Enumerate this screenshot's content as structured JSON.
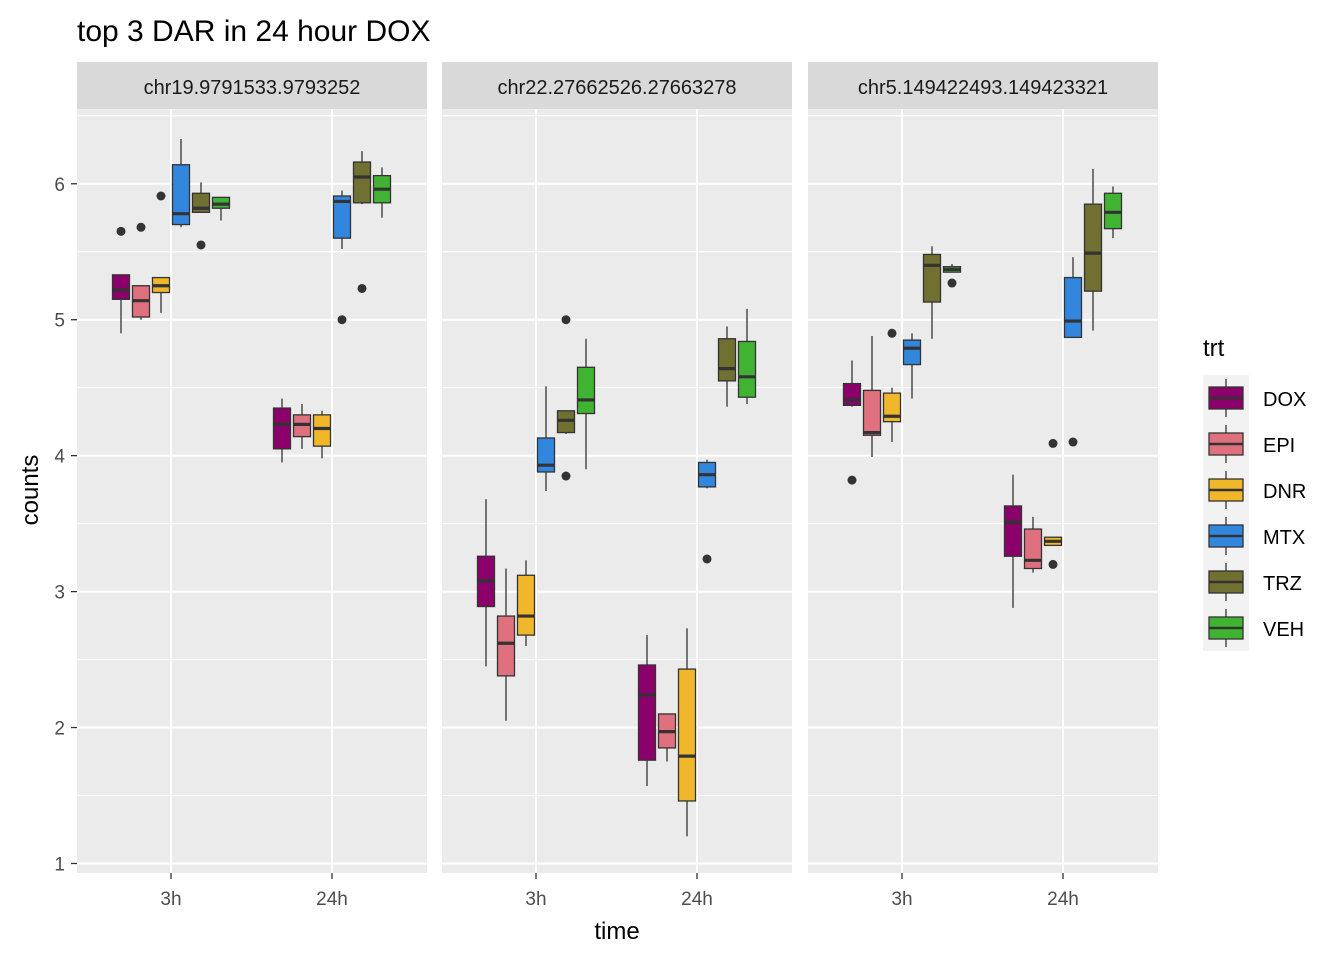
{
  "chart_data": {
    "type": "boxplot",
    "title": "top 3 DAR in 24 hour DOX",
    "xlabel": "time",
    "ylabel": "counts",
    "ylim": [
      0.93,
      6.55
    ],
    "yticks": [
      1,
      2,
      3,
      4,
      5,
      6
    ],
    "categories": [
      "3h",
      "24h"
    ],
    "legend": {
      "title": "trt",
      "position": "right",
      "items": [
        {
          "name": "DOX",
          "color": "#8B006B"
        },
        {
          "name": "EPI",
          "color": "#DF707E"
        },
        {
          "name": "DNR",
          "color": "#F1B72B"
        },
        {
          "name": "MTX",
          "color": "#3386DD"
        },
        {
          "name": "TRZ",
          "color": "#707031"
        },
        {
          "name": "VEH",
          "color": "#41B333"
        }
      ]
    },
    "panels": [
      {
        "label": "chr19.9791533.9793252",
        "groups": {
          "3h": [
            {
              "trt": "DOX",
              "min": 4.9,
              "q1": 5.15,
              "median": 5.22,
              "q3": 5.33,
              "max": 5.33,
              "outliers": [
                5.65
              ]
            },
            {
              "trt": "EPI",
              "min": 5.0,
              "q1": 5.02,
              "median": 5.14,
              "q3": 5.25,
              "max": 5.25,
              "outliers": [
                5.68
              ]
            },
            {
              "trt": "DNR",
              "min": 5.05,
              "q1": 5.2,
              "median": 5.25,
              "q3": 5.31,
              "max": 5.31,
              "outliers": [
                5.91
              ]
            },
            {
              "trt": "MTX",
              "min": 5.68,
              "q1": 5.7,
              "median": 5.78,
              "q3": 6.14,
              "max": 6.33,
              "outliers": []
            },
            {
              "trt": "TRZ",
              "min": 5.79,
              "q1": 5.79,
              "median": 5.82,
              "q3": 5.93,
              "max": 6.01,
              "outliers": [
                5.55
              ]
            },
            {
              "trt": "VEH",
              "min": 5.73,
              "q1": 5.82,
              "median": 5.85,
              "q3": 5.9,
              "max": 5.9,
              "outliers": []
            }
          ],
          "24h": [
            {
              "trt": "DOX",
              "min": 3.95,
              "q1": 4.05,
              "median": 4.23,
              "q3": 4.35,
              "max": 4.42,
              "outliers": []
            },
            {
              "trt": "EPI",
              "min": 4.05,
              "q1": 4.14,
              "median": 4.23,
              "q3": 4.3,
              "max": 4.38,
              "outliers": []
            },
            {
              "trt": "DNR",
              "min": 3.98,
              "q1": 4.07,
              "median": 4.2,
              "q3": 4.3,
              "max": 4.33,
              "outliers": []
            },
            {
              "trt": "MTX",
              "min": 5.52,
              "q1": 5.6,
              "median": 5.87,
              "q3": 5.91,
              "max": 5.95,
              "outliers": [
                5.0
              ]
            },
            {
              "trt": "TRZ",
              "min": 5.85,
              "q1": 5.86,
              "median": 6.05,
              "q3": 6.16,
              "max": 6.24,
              "outliers": [
                5.23
              ]
            },
            {
              "trt": "VEH",
              "min": 5.75,
              "q1": 5.86,
              "median": 5.96,
              "q3": 6.06,
              "max": 6.12,
              "outliers": []
            }
          ]
        }
      },
      {
        "label": "chr22.27662526.27663278",
        "groups": {
          "3h": [
            {
              "trt": "DOX",
              "min": 2.45,
              "q1": 2.89,
              "median": 3.08,
              "q3": 3.26,
              "max": 3.68,
              "outliers": []
            },
            {
              "trt": "EPI",
              "min": 2.05,
              "q1": 2.38,
              "median": 2.62,
              "q3": 2.82,
              "max": 3.17,
              "outliers": []
            },
            {
              "trt": "DNR",
              "min": 2.6,
              "q1": 2.68,
              "median": 2.82,
              "q3": 3.12,
              "max": 3.23,
              "outliers": []
            },
            {
              "trt": "MTX",
              "min": 3.74,
              "q1": 3.88,
              "median": 3.93,
              "q3": 4.13,
              "max": 4.51,
              "outliers": []
            },
            {
              "trt": "TRZ",
              "min": 4.16,
              "q1": 4.17,
              "median": 4.26,
              "q3": 4.33,
              "max": 4.33,
              "outliers": [
                5.0,
                3.85
              ]
            },
            {
              "trt": "VEH",
              "min": 3.9,
              "q1": 4.31,
              "median": 4.41,
              "q3": 4.65,
              "max": 4.86,
              "outliers": []
            }
          ],
          "24h": [
            {
              "trt": "DOX",
              "min": 1.57,
              "q1": 1.76,
              "median": 2.24,
              "q3": 2.46,
              "max": 2.68,
              "outliers": []
            },
            {
              "trt": "EPI",
              "min": 1.75,
              "q1": 1.85,
              "median": 1.97,
              "q3": 2.1,
              "max": 2.1,
              "outliers": []
            },
            {
              "trt": "DNR",
              "min": 1.2,
              "q1": 1.46,
              "median": 1.79,
              "q3": 2.43,
              "max": 2.73,
              "outliers": []
            },
            {
              "trt": "MTX",
              "min": 3.76,
              "q1": 3.77,
              "median": 3.86,
              "q3": 3.95,
              "max": 3.97,
              "outliers": [
                3.24
              ]
            },
            {
              "trt": "TRZ",
              "min": 4.36,
              "q1": 4.55,
              "median": 4.64,
              "q3": 4.86,
              "max": 4.95,
              "outliers": []
            },
            {
              "trt": "VEH",
              "min": 4.38,
              "q1": 4.43,
              "median": 4.58,
              "q3": 4.84,
              "max": 5.08,
              "outliers": []
            }
          ]
        }
      },
      {
        "label": "chr5.149422493.149423321",
        "groups": {
          "3h": [
            {
              "trt": "DOX",
              "min": 4.36,
              "q1": 4.37,
              "median": 4.41,
              "q3": 4.53,
              "max": 4.7,
              "outliers": [
                3.82
              ]
            },
            {
              "trt": "EPI",
              "min": 3.99,
              "q1": 4.15,
              "median": 4.17,
              "q3": 4.48,
              "max": 4.88,
              "outliers": []
            },
            {
              "trt": "DNR",
              "min": 4.1,
              "q1": 4.25,
              "median": 4.29,
              "q3": 4.46,
              "max": 4.5,
              "outliers": [
                4.9
              ]
            },
            {
              "trt": "MTX",
              "min": 4.42,
              "q1": 4.67,
              "median": 4.79,
              "q3": 4.85,
              "max": 4.9,
              "outliers": []
            },
            {
              "trt": "TRZ",
              "min": 4.86,
              "q1": 5.13,
              "median": 5.4,
              "q3": 5.48,
              "max": 5.54,
              "outliers": []
            },
            {
              "trt": "VEH",
              "min": 5.35,
              "q1": 5.35,
              "median": 5.37,
              "q3": 5.39,
              "max": 5.41,
              "outliers": [
                5.27
              ]
            }
          ],
          "24h": [
            {
              "trt": "DOX",
              "min": 2.88,
              "q1": 3.26,
              "median": 3.51,
              "q3": 3.63,
              "max": 3.86,
              "outliers": []
            },
            {
              "trt": "EPI",
              "min": 3.14,
              "q1": 3.17,
              "median": 3.23,
              "q3": 3.46,
              "max": 3.55,
              "outliers": []
            },
            {
              "trt": "DNR",
              "min": 3.34,
              "q1": 3.34,
              "median": 3.37,
              "q3": 3.4,
              "max": 3.4,
              "outliers": [
                4.09,
                3.2
              ]
            },
            {
              "trt": "MTX",
              "min": 4.87,
              "q1": 4.87,
              "median": 4.99,
              "q3": 5.31,
              "max": 5.46,
              "outliers": [
                4.1
              ]
            },
            {
              "trt": "TRZ",
              "min": 4.92,
              "q1": 5.21,
              "median": 5.49,
              "q3": 5.85,
              "max": 6.11,
              "outliers": []
            },
            {
              "trt": "VEH",
              "min": 5.6,
              "q1": 5.67,
              "median": 5.79,
              "q3": 5.93,
              "max": 5.98,
              "outliers": []
            }
          ]
        }
      }
    ]
  }
}
